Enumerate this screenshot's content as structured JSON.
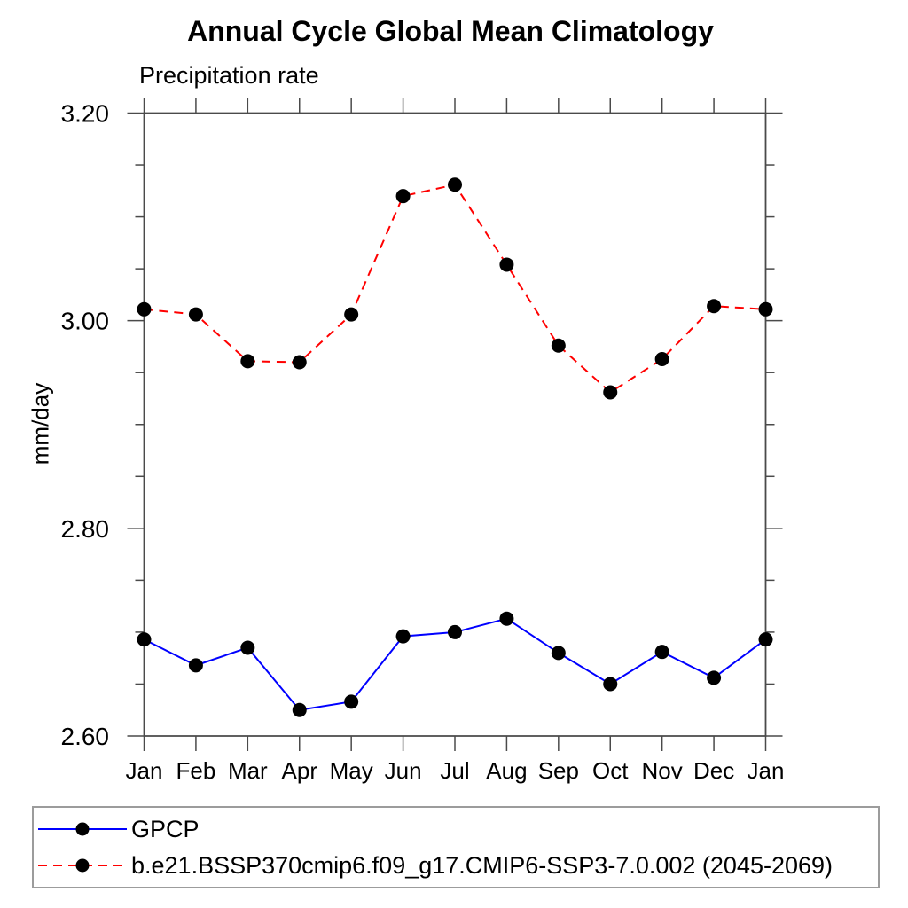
{
  "title": "Annual Cycle Global Mean Climatology",
  "chart_data": {
    "type": "line",
    "title": "Annual Cycle Global Mean Climatology",
    "left_title": "Precipitation rate",
    "ylabel": "mm/day",
    "xlabel": "",
    "categories": [
      "Jan",
      "Feb",
      "Mar",
      "Apr",
      "May",
      "Jun",
      "Jul",
      "Aug",
      "Sep",
      "Oct",
      "Nov",
      "Dec",
      "Jan"
    ],
    "series": [
      {
        "name": "GPCP",
        "color": "#0000ff",
        "line_style": "solid",
        "marker": "filled-circle",
        "values": [
          2.693,
          2.668,
          2.685,
          2.625,
          2.633,
          2.696,
          2.7,
          2.713,
          2.68,
          2.65,
          2.681,
          2.656,
          2.693
        ]
      },
      {
        "name": "b.e21.BSSP370cmip6.f09_g17.CMIP6-SSP3-7.0.002 (2045-2069)",
        "color": "#ff0000",
        "line_style": "dashed",
        "marker": "filled-circle",
        "values": [
          3.011,
          3.006,
          2.961,
          2.96,
          3.006,
          3.12,
          3.131,
          3.054,
          2.976,
          2.931,
          2.963,
          3.014,
          3.011
        ]
      }
    ],
    "ylim": [
      2.6,
      3.2
    ],
    "yticks": [
      2.6,
      2.8,
      3.0,
      3.2
    ],
    "ytick_labels": [
      "2.60",
      "2.80",
      "3.00",
      "3.20"
    ],
    "y_minor_step": 0.05,
    "grid": "off",
    "marker_color": "#000000",
    "axis_color": "#4a4a4a",
    "legend_position": "bottom-left-box",
    "legend_border_color": "#9c9c9c"
  }
}
